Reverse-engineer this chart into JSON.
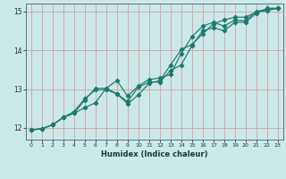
{
  "title": "",
  "xlabel": "Humidex (Indice chaleur)",
  "bg_color": "#cce8e8",
  "line_color": "#1a7a6e",
  "grid_color": "#d4a0a0",
  "xlim": [
    -0.5,
    23.5
  ],
  "ylim": [
    11.7,
    15.2
  ],
  "yticks": [
    12,
    13,
    14,
    15
  ],
  "xticks": [
    0,
    1,
    2,
    3,
    4,
    5,
    6,
    7,
    8,
    9,
    10,
    11,
    12,
    13,
    14,
    15,
    16,
    17,
    18,
    19,
    20,
    21,
    22,
    23
  ],
  "line1_x": [
    0,
    1,
    2,
    3,
    4,
    5,
    6,
    7,
    8,
    9,
    10,
    11,
    12,
    13,
    14,
    15,
    16,
    17,
    18,
    19,
    20,
    21,
    22,
    23
  ],
  "line1_y": [
    11.95,
    11.98,
    12.08,
    12.27,
    12.38,
    12.52,
    12.65,
    13.02,
    13.22,
    12.82,
    13.08,
    13.25,
    13.28,
    13.38,
    13.92,
    14.35,
    14.62,
    14.72,
    14.62,
    14.78,
    14.76,
    15.0,
    15.05,
    15.08
  ],
  "line2_x": [
    0,
    1,
    2,
    3,
    4,
    5,
    6,
    7,
    8,
    9,
    10,
    11,
    12,
    13,
    14,
    15,
    16,
    17,
    18,
    19,
    20,
    21,
    22,
    23
  ],
  "line2_y": [
    11.95,
    11.98,
    12.08,
    12.27,
    12.42,
    12.75,
    12.98,
    12.98,
    12.88,
    12.68,
    13.05,
    13.18,
    13.18,
    13.48,
    13.62,
    14.12,
    14.5,
    14.58,
    14.5,
    14.72,
    14.72,
    14.95,
    15.08,
    15.08
  ],
  "line3_x": [
    0,
    1,
    2,
    3,
    4,
    5,
    6,
    7,
    8,
    9,
    10,
    11,
    12,
    13,
    14,
    15,
    16,
    17,
    18,
    19,
    20,
    21,
    22,
    23
  ],
  "line3_y": [
    11.95,
    11.98,
    12.08,
    12.27,
    12.38,
    12.72,
    13.02,
    13.02,
    12.88,
    12.62,
    12.85,
    13.15,
    13.22,
    13.62,
    14.02,
    14.15,
    14.42,
    14.68,
    14.78,
    14.85,
    14.85,
    14.98,
    15.02,
    15.08
  ]
}
